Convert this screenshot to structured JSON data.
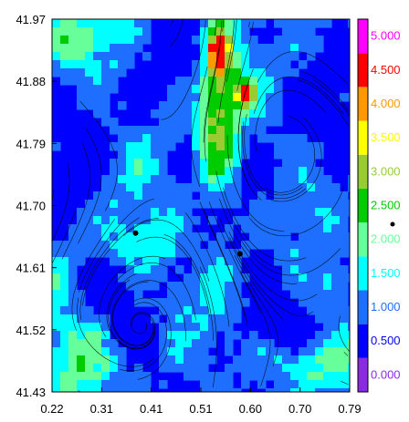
{
  "chart_data": {
    "type": "heatmap",
    "title": "",
    "xlabel": "",
    "ylabel": "",
    "xlim": [
      0.22,
      0.79
    ],
    "ylim": [
      41.43,
      41.97
    ],
    "x_ticks": [
      "0.22",
      "0.31",
      "0.41",
      "0.51",
      "0.60",
      "0.70",
      "0.79"
    ],
    "y_ticks": [
      "41.97",
      "41.88",
      "41.79",
      "41.70",
      "41.61",
      "41.52",
      "41.43"
    ],
    "colorbar": {
      "levels": [
        "0.000",
        "0.500",
        "1.000",
        "1.500",
        "2.000",
        "2.500",
        "3.000",
        "3.500",
        "4.000",
        "4.500",
        "5.000"
      ],
      "colors": [
        "#8a2be2",
        "#0000ff",
        "#1e6fff",
        "#00ffff",
        "#66ff99",
        "#00cc00",
        "#99cc33",
        "#ffff00",
        "#ff9900",
        "#ff0000",
        "#ff00ff"
      ]
    },
    "streamlines": true,
    "markers": [
      {
        "x": 0.38,
        "y": 41.66
      },
      {
        "x": 0.58,
        "y": 41.63
      }
    ]
  }
}
